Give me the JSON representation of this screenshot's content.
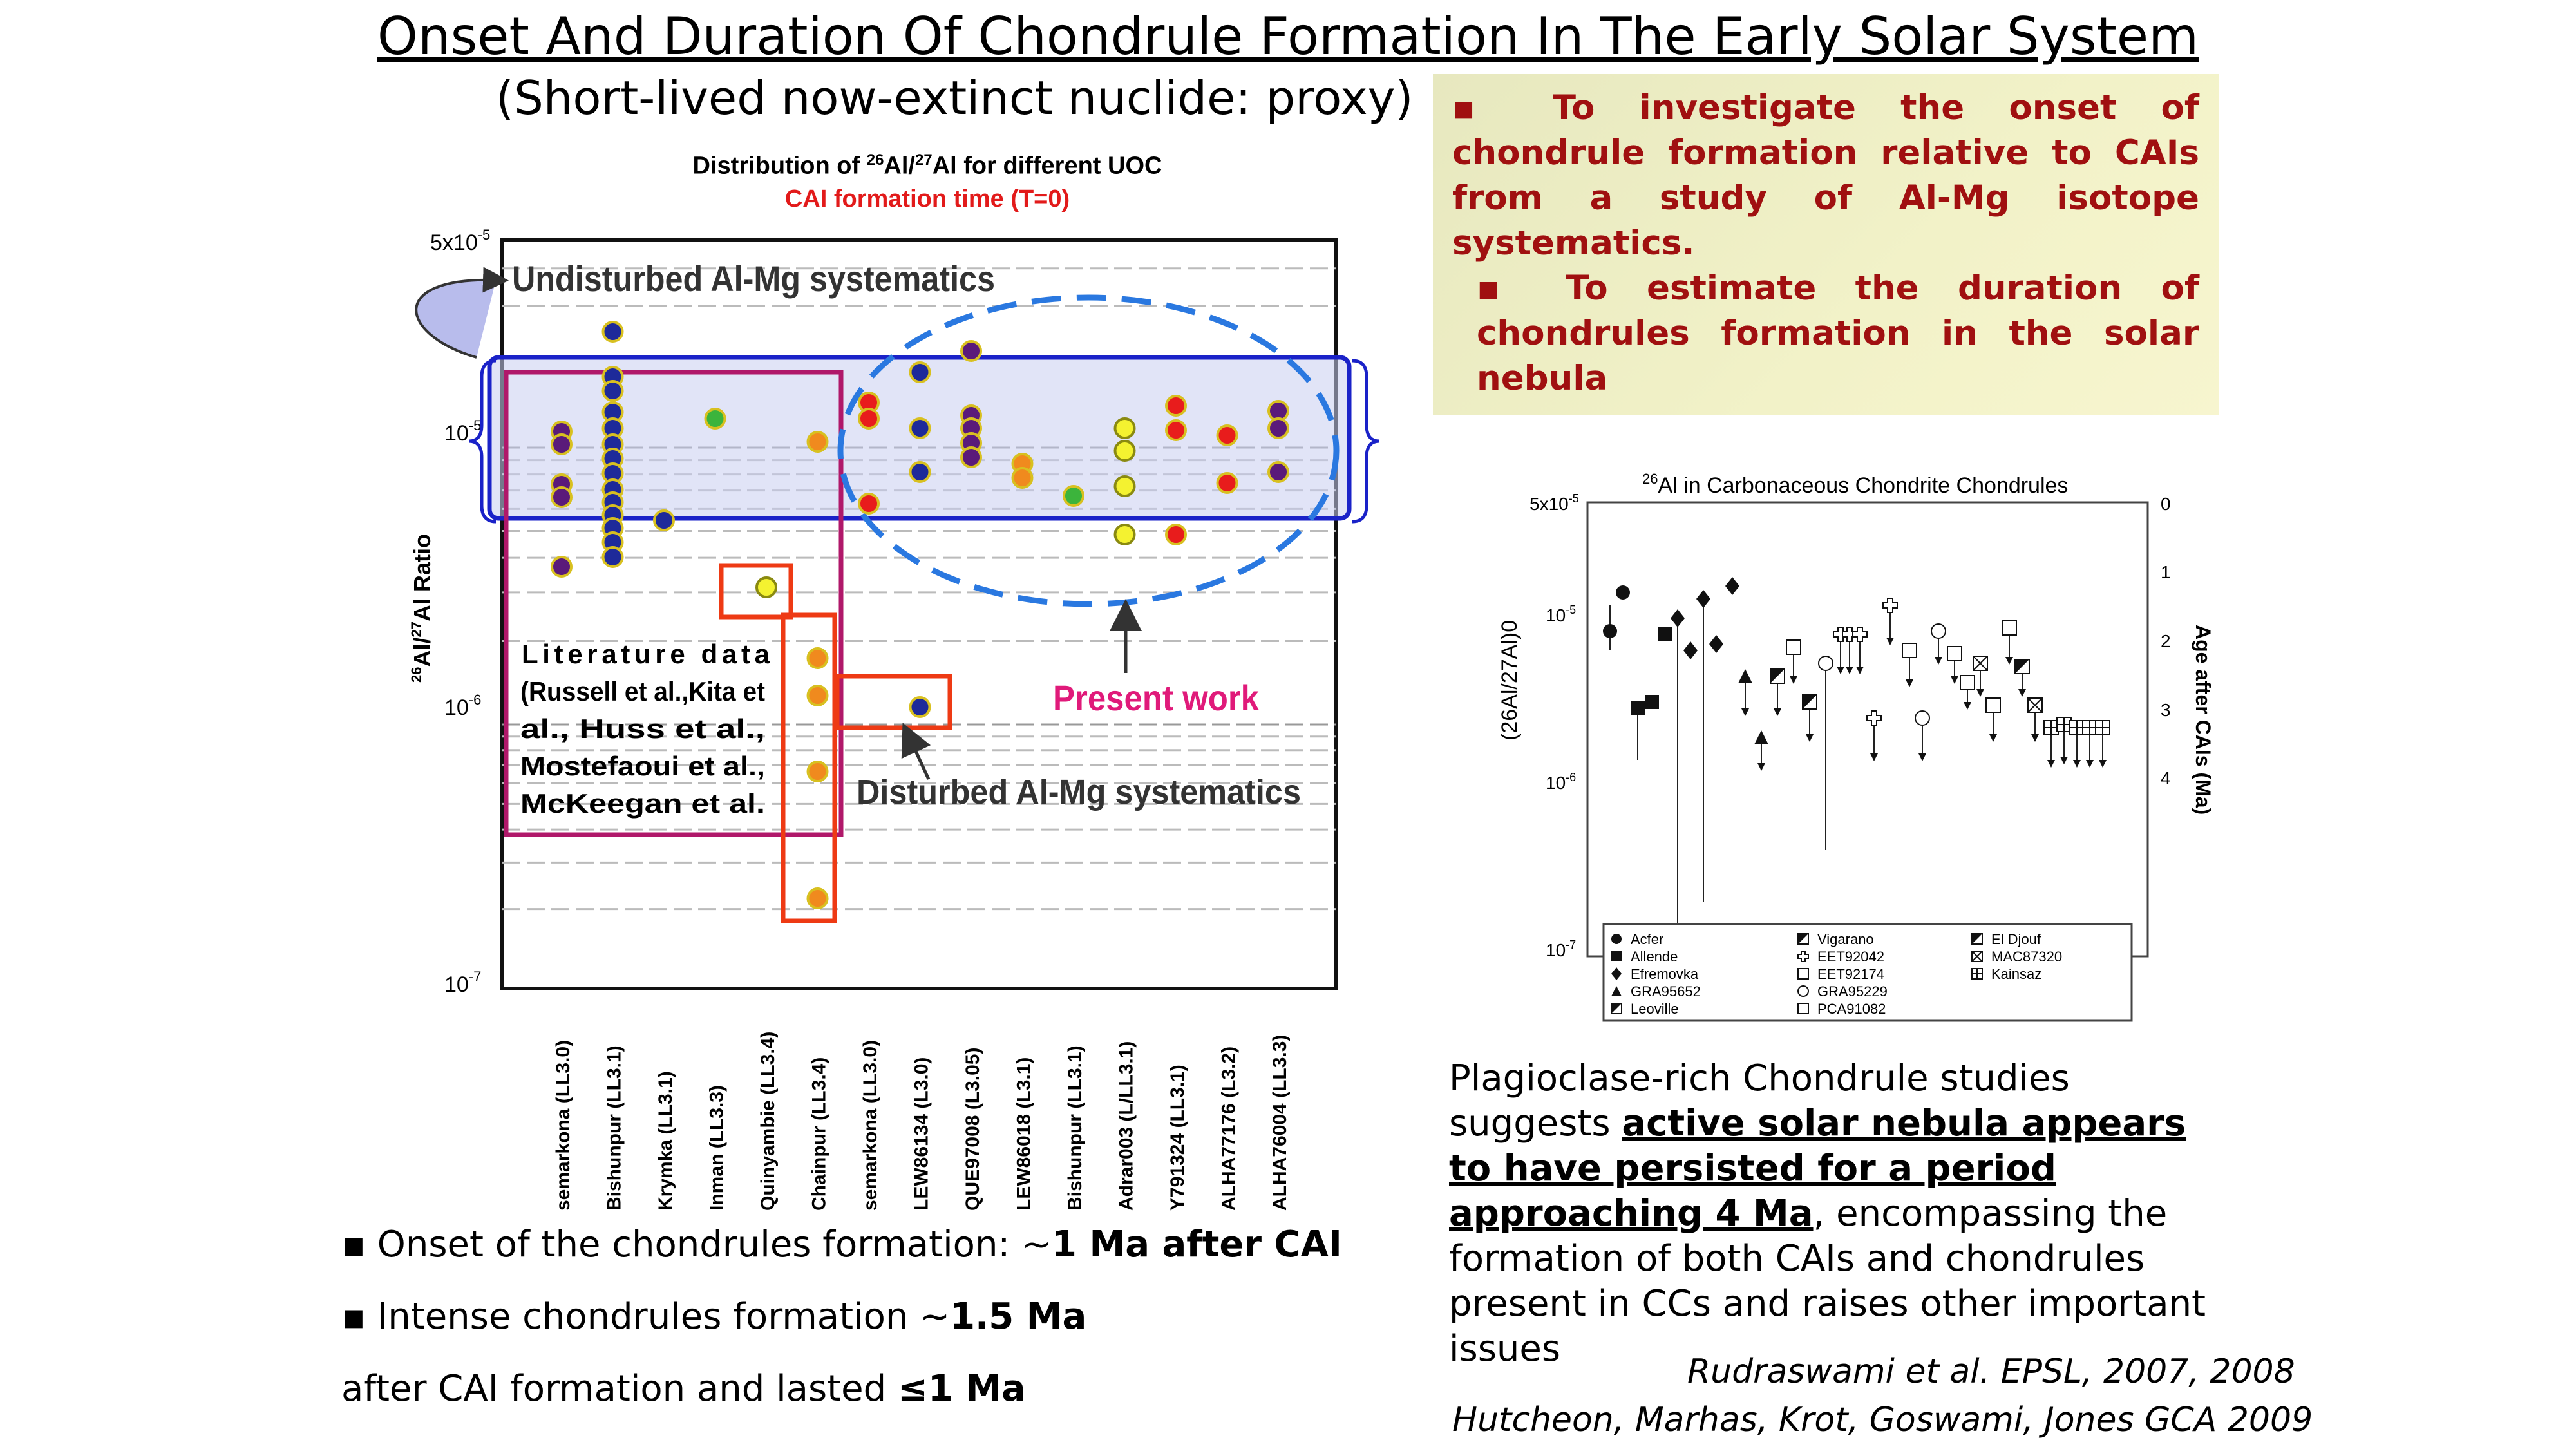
{
  "title": "Onset And Duration Of Chondrule Formation In The Early Solar System",
  "subtitle": "(Short-lived now-extinct nuclide: proxy)",
  "chart1": {
    "title_prefix": "Distribution of ",
    "title_sup1": "26",
    "title_mid": "Al/",
    "title_sup2": "27",
    "title_suffix": "Al for different UOC",
    "subtitle": "CAI formation time (T=0)",
    "ylabel_pre": "26",
    "ylabel_a": "Al/",
    "ylabel_b": "27",
    "ylabel_c": "Al Ratio",
    "yticks": [
      {
        "base": "5x10",
        "exp": "-5",
        "value": 5e-05
      },
      {
        "base": "10",
        "exp": "-5",
        "value": 1e-05
      },
      {
        "base": "10",
        "exp": "-6",
        "value": 1e-06
      },
      {
        "base": "10",
        "exp": "-7",
        "value": 1e-07
      }
    ],
    "categories": [
      "semarkona (LL3.0)",
      "Bishunpur (LL3.1)",
      "Krymka (LL3.1)",
      "Inman (LL3.3)",
      "Quinyambie (LL3.4)",
      "Chainpur (LL3.4)",
      "semarkona (LL3.0)",
      "LEW86134 (L3.0)",
      "QUE97008 (L3.05)",
      "LEW86018 (L3.1)",
      "Bishunpur (LL3.1)",
      "Adrar003 (L/LL3.1)",
      "Y791324 (LL3.1)",
      "ALHA77176 (L3.2)",
      "ALHA76004 (LL3.3)"
    ],
    "annotations": {
      "undisturbed": "Undisturbed Al-Mg systematics",
      "literature": [
        "Literature data",
        "(Russell et al.,Kita et",
        "al., Huss et al.,",
        "Mostefaoui et al.,",
        "McKeegan et al."
      ],
      "present": "Present work",
      "disturbed": "Disturbed Al-Mg systematics"
    },
    "colors": {
      "purple": "#5a1a7a",
      "navy": "#1e2a9a",
      "red": "#e81c1c",
      "orange": "#f08a1e",
      "yellow": "#f4f230",
      "green": "#3cb43c",
      "band": "#1a22c8",
      "lit_box": "#b0186a",
      "ellipse": "#2a78e0",
      "present": "#e01a7a"
    }
  },
  "chart2": {
    "title_sup": "26",
    "title": "Al in Carbonaceous Chondrite Chondrules",
    "ylabel": "(26Al/27Al)0",
    "ylabel_right": "Age after CAIs (Ma)",
    "yticks": [
      {
        "base": "5x10",
        "exp": "-5"
      },
      {
        "base": "10",
        "exp": "-5"
      },
      {
        "base": "10",
        "exp": "-6"
      },
      {
        "base": "10",
        "exp": "-7"
      }
    ],
    "right_ticks": [
      "0",
      "1",
      "2",
      "3",
      "4"
    ],
    "legend": [
      [
        "Acfer",
        "Allende",
        "Efremovka",
        "GRA95652",
        "Leoville"
      ],
      [
        "Vigarano",
        "EET92042",
        "EET92174",
        "GRA95229",
        "PCA91082"
      ],
      [
        "El Djouf",
        "MAC87320",
        "Kainsaz"
      ]
    ]
  },
  "objectives": [
    "▪ To investigate the onset of chondrule formation relative to CAIs from a study of Al-Mg isotope systematics.",
    "▪ To estimate the duration of chondrules formation in the solar nebula"
  ],
  "bullets": {
    "b1_pre": "▪ Onset of the chondrules formation: ~",
    "b1_bold": "1 Ma after CAI",
    "b2_pre": "▪ Intense chondrules formation ~",
    "b2_bold": "1.5 Ma",
    "b3_pre": "after CAI formation and lasted ",
    "b3_bold": "≤1 Ma"
  },
  "plag": {
    "pre": "Plagioclase-rich Chondrule studies suggests ",
    "underlined": "active solar nebula appears to have persisted for a period approaching 4 Ma",
    "post": ", encompassing the formation of both CAIs and chondrules present in CCs and raises other important issues"
  },
  "refs": [
    "Rudraswami et al. EPSL, 2007, 2008",
    "Hutcheon,  Marhas, Krot, Goswami, Jones  GCA 2009"
  ]
}
